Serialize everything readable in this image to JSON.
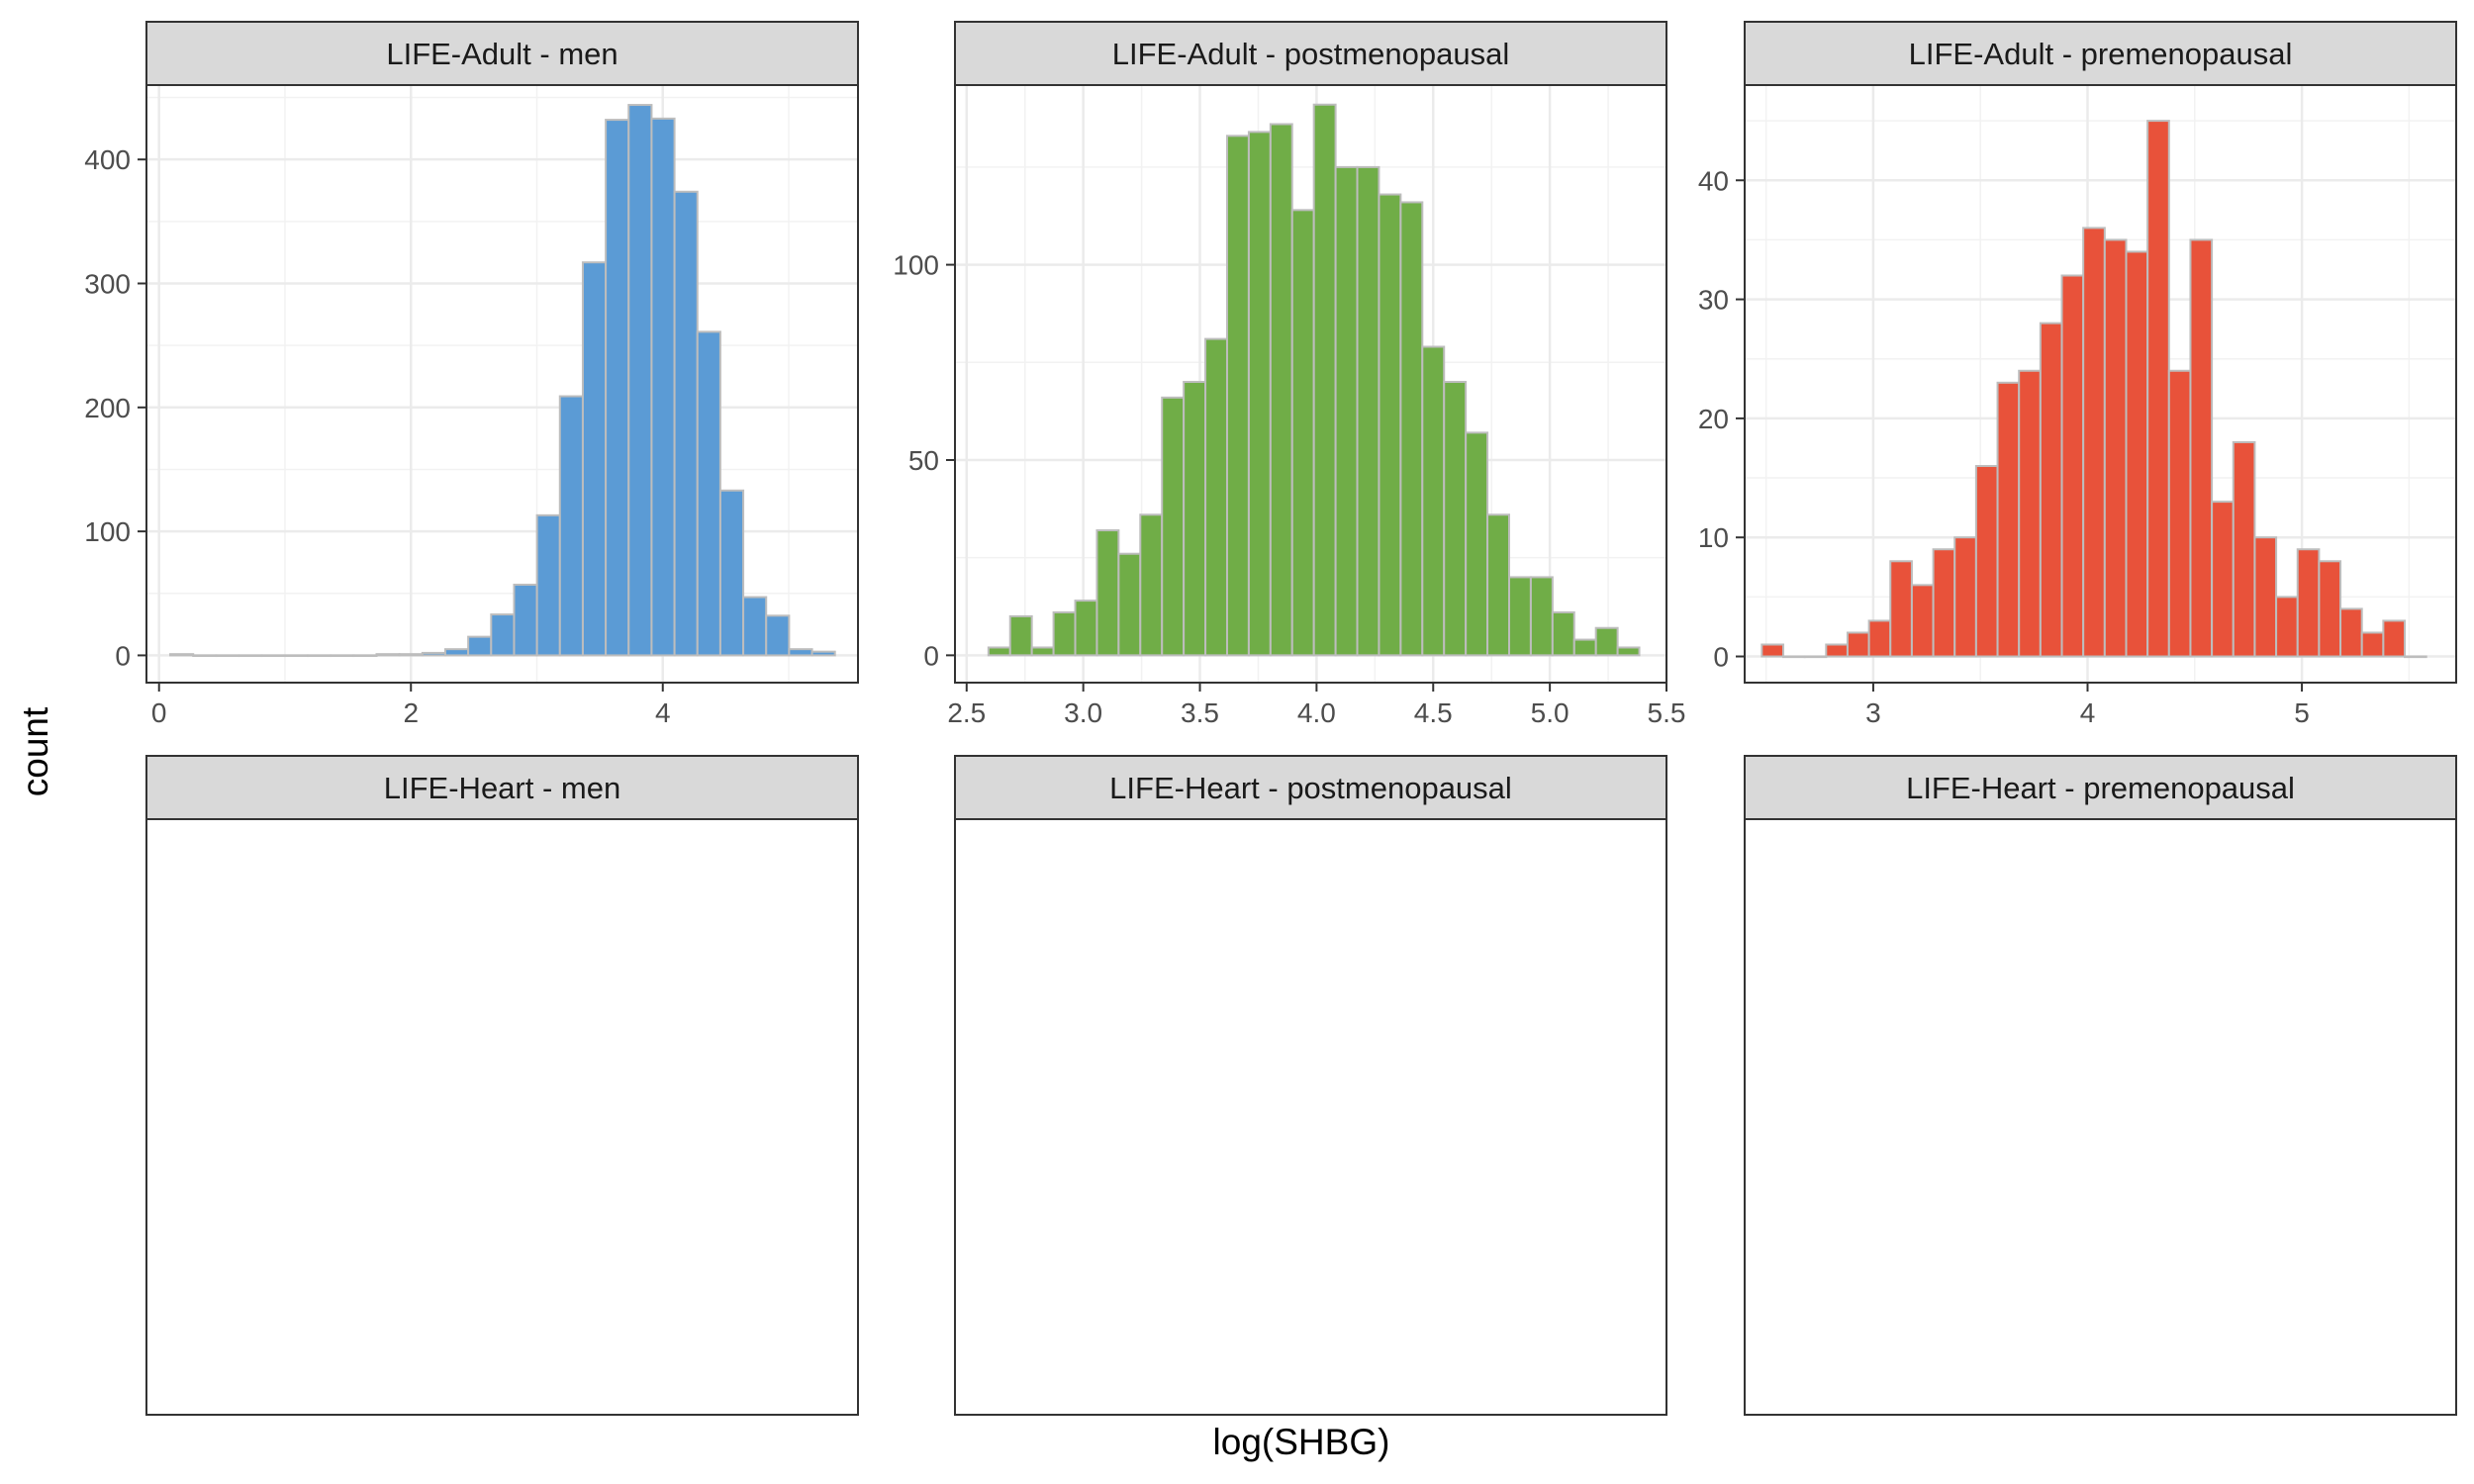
{
  "chart_data": {
    "type": "bar",
    "xlabel": "log(SHBG)",
    "ylabel": "count",
    "grid": true,
    "panels": [
      {
        "title": "LIFE-Adult - men",
        "fill": "#5B9BD5",
        "xlim": [
          -0.1,
          5.55
        ],
        "ylim": [
          -22,
          460
        ],
        "xticks": [
          0,
          2,
          4
        ],
        "xtick_labels": [
          "0",
          "2",
          "4"
        ],
        "yticks": [
          0,
          100,
          200,
          300,
          400
        ],
        "ytick_labels": [
          "0",
          "100",
          "200",
          "300",
          "400"
        ],
        "bin_width": 0.182,
        "x": [
          0.18,
          0.362,
          0.544,
          0.726,
          0.908,
          1.09,
          1.272,
          1.454,
          1.636,
          1.818,
          2.0,
          2.182,
          2.364,
          2.546,
          2.728,
          2.91,
          3.092,
          3.274,
          3.456,
          3.638,
          3.82,
          4.002,
          4.184,
          4.366,
          4.548,
          4.73,
          4.912,
          5.094,
          5.276
        ],
        "values": [
          1,
          0,
          0,
          0,
          0,
          0,
          0,
          0,
          0,
          1,
          1,
          2,
          5,
          15,
          33,
          57,
          113,
          209,
          317,
          432,
          444,
          433,
          374,
          261,
          133,
          47,
          32,
          5,
          3
        ]
      },
      {
        "title": "LIFE-Adult - postmenopausal",
        "fill": "#70AD47",
        "xlim": [
          2.45,
          5.5
        ],
        "ylim": [
          -7,
          146
        ],
        "xticks": [
          2.5,
          3.0,
          3.5,
          4.0,
          4.5,
          5.0,
          5.5
        ],
        "xtick_labels": [
          "2.5",
          "3.0",
          "3.5",
          "4.0",
          "4.5",
          "5.0",
          "5.5"
        ],
        "yticks": [
          0,
          50,
          100
        ],
        "ytick_labels": [
          "0",
          "50",
          "100"
        ],
        "bin_width": 0.093,
        "x": [
          2.64,
          2.733,
          2.826,
          2.919,
          3.012,
          3.105,
          3.198,
          3.291,
          3.384,
          3.477,
          3.57,
          3.663,
          3.756,
          3.849,
          3.942,
          4.035,
          4.128,
          4.221,
          4.314,
          4.407,
          4.5,
          4.593,
          4.686,
          4.779,
          4.872,
          4.965,
          5.058,
          5.151,
          5.244,
          5.337
        ],
        "values": [
          2,
          10,
          2,
          11,
          14,
          32,
          26,
          36,
          66,
          70,
          81,
          133,
          134,
          136,
          114,
          141,
          125,
          125,
          118,
          116,
          79,
          70,
          57,
          36,
          20,
          20,
          11,
          4,
          7,
          2
        ]
      },
      {
        "title": "LIFE-Adult - premenopausal",
        "fill": "#E8523A",
        "xlim": [
          2.4,
          5.72
        ],
        "ylim": [
          -2.2,
          48
        ],
        "xticks": [
          3,
          4,
          5
        ],
        "xtick_labels": [
          "3",
          "4",
          "5"
        ],
        "yticks": [
          0,
          10,
          20,
          30,
          40
        ],
        "ytick_labels": [
          "0",
          "10",
          "20",
          "30",
          "40"
        ],
        "bin_width": 0.1,
        "x": [
          2.53,
          2.63,
          2.73,
          2.83,
          2.93,
          3.03,
          3.13,
          3.23,
          3.33,
          3.43,
          3.53,
          3.63,
          3.73,
          3.83,
          3.93,
          4.03,
          4.13,
          4.23,
          4.33,
          4.43,
          4.53,
          4.63,
          4.73,
          4.83,
          4.93,
          5.03,
          5.13,
          5.23,
          5.33,
          5.43,
          5.53
        ],
        "values": [
          1,
          0,
          0,
          1,
          2,
          3,
          8,
          6,
          9,
          10,
          16,
          23,
          24,
          28,
          32,
          36,
          35,
          34,
          45,
          24,
          35,
          13,
          18,
          10,
          5,
          9,
          8,
          4,
          2,
          3,
          0
        ]
      },
      {
        "title": "LIFE-Heart - men"
      },
      {
        "title": "LIFE-Heart - postmenopausal"
      },
      {
        "title": "LIFE-Heart - premenopausal"
      }
    ]
  }
}
